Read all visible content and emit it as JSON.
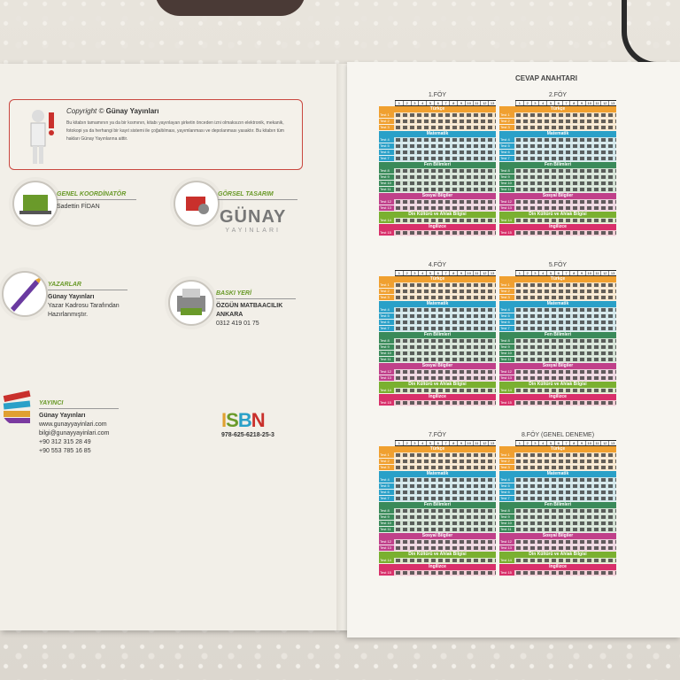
{
  "left_page": {
    "copyright": {
      "title_prefix": "Copyright ©",
      "publisher": "Günay Yayınları",
      "text": "Bu kitabın tamamının ya da bir kısmının, kitabı yayınlayan şirketin önceden izni olmaksızın elektronik, mekanik, fotokopi ya da herhangi bir kayıt sistemi ile çoğaltılması, yayımlanması ve depolanması yasaktır. Bu kitabın tüm hakları Günay Yayınlarına aittir."
    },
    "credits": {
      "coordinator": {
        "role": "GENEL KOORDİNATÖR",
        "name": "Sadettin FİDAN"
      },
      "design": {
        "role": "GÖRSEL TASARIM"
      },
      "authors": {
        "role": "YAZARLAR",
        "lines": [
          "Günay Yayınları",
          "Yazar Kadrosu Tarafından",
          "Hazırlanmıştır."
        ]
      },
      "print": {
        "role": "BASKI YERİ",
        "lines": [
          "ÖZGÜN MATBAACILIK",
          "ANKARA",
          "0312 419 01 75"
        ]
      },
      "publisher": {
        "role": "YAYINCI",
        "lines": [
          "Günay Yayınları",
          "www.gunayyayinlari.com",
          "bilgi@gunayyayinlari.com",
          "+90 312 315 28 49",
          "+90 553 785 16 85"
        ]
      }
    },
    "logo": {
      "main": "GÜNAY",
      "sub": "YAYINLARI"
    },
    "isbn": {
      "letters": "ISBN",
      "number": "978-625-6218-25-3"
    }
  },
  "right_page": {
    "title": "CEVAP ANAHTARI",
    "foys": [
      {
        "title": "1.FÖY"
      },
      {
        "title": "2.FÖY"
      },
      {
        "title": "4.FÖY"
      },
      {
        "title": "5.FÖY"
      },
      {
        "title": "7.FÖY"
      },
      {
        "title": "8.FÖY (GENEL DENEME)"
      }
    ],
    "sections": [
      {
        "name": "Türkçe",
        "color": "#f0a030",
        "rows": [
          "Test 1",
          "Test 2",
          "Test 3"
        ]
      },
      {
        "name": "Matematik",
        "color": "#2aa0c8",
        "rows": [
          "Test 4",
          "Test 5",
          "Test 6",
          "Test 7"
        ]
      },
      {
        "name": "Fen Bilimleri",
        "color": "#3a8a5a",
        "rows": [
          "Test 8",
          "Test 9",
          "Test 10",
          "Test 11"
        ]
      },
      {
        "name": "Sosyal Bilgiler",
        "color": "#c0408a",
        "rows": [
          "Test 12",
          "Test 13"
        ]
      },
      {
        "name": "Din Kültürü ve Ahlak Bilgisi",
        "color": "#7ab030",
        "rows": [
          "Test 14"
        ]
      },
      {
        "name": "İngilizce",
        "color": "#d8306a",
        "rows": [
          "Test 15"
        ]
      }
    ],
    "numbers": [
      "1",
      "2",
      "3",
      "4",
      "5",
      "6",
      "7",
      "8",
      "9",
      "10",
      "11",
      "12",
      "13"
    ]
  }
}
